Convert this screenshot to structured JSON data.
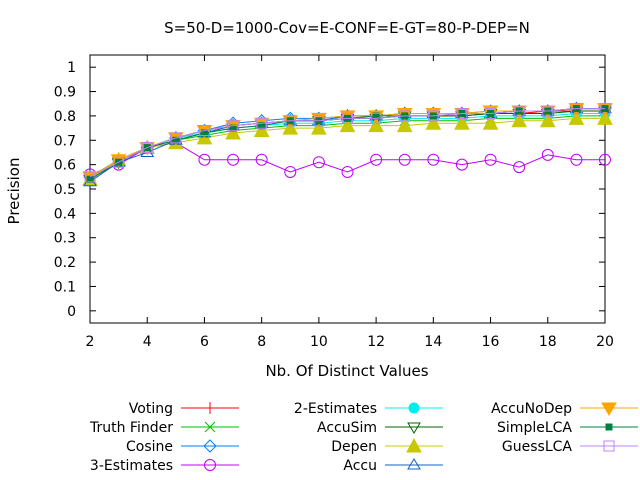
{
  "chart_data": {
    "type": "line",
    "title": "S=50-D=1000-Cov=E-CONF=E-GT=80-P-DEP=N",
    "xlabel": "Nb. Of Distinct Values",
    "ylabel": "Precision",
    "xlim": [
      2,
      20
    ],
    "ylim": [
      -0.05,
      1.05
    ],
    "xticks": [
      2,
      4,
      6,
      8,
      10,
      12,
      14,
      16,
      18,
      20
    ],
    "yticks": [
      0,
      0.1,
      0.2,
      0.3,
      0.4,
      0.5,
      0.6,
      0.7,
      0.8,
      0.9,
      1
    ],
    "xtick_labels": [
      "2",
      "4",
      "6",
      "8",
      "10",
      "12",
      "14",
      "16",
      "18",
      "20"
    ],
    "ytick_labels": [
      "0",
      "0.1",
      "0.2",
      "0.3",
      "0.4",
      "0.5",
      "0.6",
      "0.7",
      "0.8",
      "0.9",
      "1"
    ],
    "x": [
      2,
      3,
      4,
      5,
      6,
      7,
      8,
      9,
      10,
      11,
      12,
      13,
      14,
      15,
      16,
      17,
      18,
      19,
      20
    ],
    "grid": false,
    "legend_position": "bottom",
    "series": [
      {
        "name": "Voting",
        "color": "#ff0000",
        "marker": "plus",
        "values": [
          0.55,
          0.61,
          0.67,
          0.71,
          0.74,
          0.76,
          0.77,
          0.78,
          0.78,
          0.79,
          0.79,
          0.8,
          0.8,
          0.8,
          0.81,
          0.81,
          0.82,
          0.82,
          0.82
        ]
      },
      {
        "name": "Truth Finder",
        "color": "#00c000",
        "marker": "cross",
        "values": [
          0.54,
          0.61,
          0.67,
          0.7,
          0.72,
          0.74,
          0.75,
          0.76,
          0.76,
          0.77,
          0.77,
          0.78,
          0.78,
          0.78,
          0.79,
          0.79,
          0.79,
          0.8,
          0.8
        ]
      },
      {
        "name": "Cosine",
        "color": "#0080ff",
        "marker": "diamond",
        "values": [
          0.55,
          0.62,
          0.67,
          0.71,
          0.74,
          0.77,
          0.78,
          0.79,
          0.79,
          0.8,
          0.8,
          0.81,
          0.81,
          0.81,
          0.82,
          0.82,
          0.82,
          0.83,
          0.83
        ]
      },
      {
        "name": "3-Estimates",
        "color": "#c000ff",
        "marker": "circle",
        "values": [
          0.56,
          0.6,
          0.67,
          0.69,
          0.62,
          0.62,
          0.62,
          0.57,
          0.61,
          0.57,
          0.62,
          0.62,
          0.62,
          0.6,
          0.62,
          0.59,
          0.64,
          0.62,
          0.62
        ]
      },
      {
        "name": "2-Estimates",
        "color": "#00eeee",
        "marker": "circle-filled",
        "values": [
          0.55,
          0.61,
          0.67,
          0.71,
          0.73,
          0.75,
          0.76,
          0.77,
          0.77,
          0.78,
          0.78,
          0.79,
          0.79,
          0.79,
          0.8,
          0.8,
          0.8,
          0.81,
          0.81
        ]
      },
      {
        "name": "AccuSim",
        "color": "#006400",
        "marker": "triangle-down-open",
        "values": [
          0.54,
          0.61,
          0.67,
          0.71,
          0.74,
          0.76,
          0.77,
          0.78,
          0.78,
          0.79,
          0.79,
          0.8,
          0.8,
          0.8,
          0.81,
          0.81,
          0.81,
          0.82,
          0.82
        ]
      },
      {
        "name": "Depen",
        "color": "#c8c800",
        "marker": "triangle-up-filled",
        "values": [
          0.54,
          0.62,
          0.67,
          0.69,
          0.71,
          0.73,
          0.74,
          0.75,
          0.75,
          0.76,
          0.76,
          0.76,
          0.77,
          0.77,
          0.77,
          0.78,
          0.78,
          0.79,
          0.79
        ]
      },
      {
        "name": "Accu",
        "color": "#1060c0",
        "marker": "triangle-up-open",
        "values": [
          0.53,
          0.61,
          0.65,
          0.7,
          0.73,
          0.76,
          0.77,
          0.78,
          0.78,
          0.8,
          0.8,
          0.81,
          0.81,
          0.81,
          0.81,
          0.82,
          0.82,
          0.83,
          0.83
        ]
      },
      {
        "name": "AccuNoDep",
        "color": "#ffa500",
        "marker": "triangle-down-filled",
        "values": [
          0.55,
          0.62,
          0.67,
          0.71,
          0.74,
          0.76,
          0.77,
          0.78,
          0.79,
          0.8,
          0.8,
          0.81,
          0.81,
          0.81,
          0.82,
          0.82,
          0.82,
          0.83,
          0.83
        ]
      },
      {
        "name": "SimpleLCA",
        "color": "#008040",
        "marker": "square-filled",
        "values": [
          0.54,
          0.61,
          0.67,
          0.7,
          0.73,
          0.75,
          0.76,
          0.78,
          0.78,
          0.79,
          0.8,
          0.8,
          0.8,
          0.81,
          0.81,
          0.82,
          0.82,
          0.83,
          0.83
        ]
      },
      {
        "name": "GuessLCA",
        "color": "#c080ff",
        "marker": "square-open",
        "values": [
          0.55,
          0.61,
          0.67,
          0.71,
          0.74,
          0.76,
          0.77,
          0.78,
          0.78,
          0.79,
          0.79,
          0.8,
          0.8,
          0.81,
          0.81,
          0.82,
          0.82,
          0.83,
          0.83
        ]
      }
    ]
  }
}
